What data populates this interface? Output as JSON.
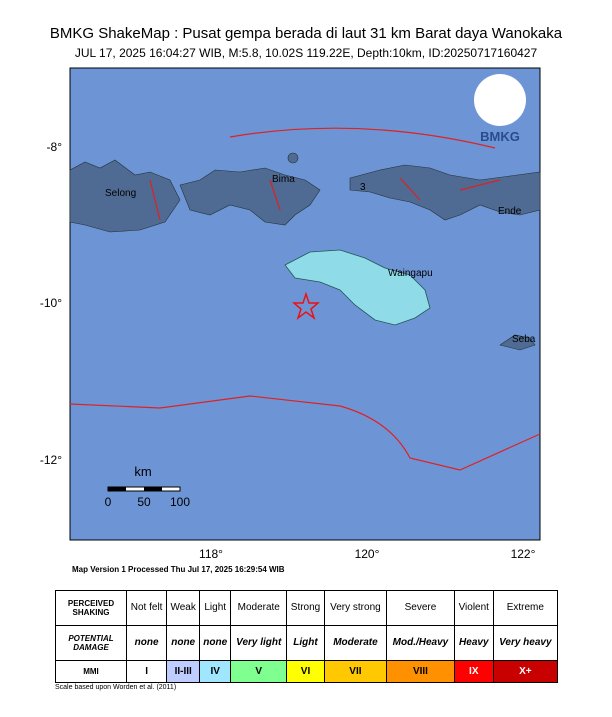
{
  "header": {
    "title": "BMKG ShakeMap : Pusat gempa berada di laut 31 km Barat daya Wanokaka",
    "subtitle": "JUL 17, 2025 16:04:27 WIB, M:5.8, 10.02S 119.22E, Depth:10km, ID:20250717160427"
  },
  "map": {
    "logo": "BMKG",
    "yticks": [
      "-8°",
      "-10°",
      "-12°"
    ],
    "xticks": [
      "118°",
      "120°",
      "122°"
    ],
    "places": [
      "Selong",
      "Bima",
      "3",
      "Ende",
      "Waingapu",
      "Seba"
    ],
    "scale": {
      "unit": "km",
      "labels": [
        "0",
        "50",
        "100"
      ]
    }
  },
  "footer": {
    "version": "Map Version 1 Processed Thu Jul 17, 2025 16:29:54 WIB",
    "note": "Scale based upon Worden et al. (2011)"
  },
  "legend": {
    "rows": [
      {
        "label": "PERCEIVED SHAKING",
        "cells": [
          "Not felt",
          "Weak",
          "Light",
          "Moderate",
          "Strong",
          "Very strong",
          "Severe",
          "Violent",
          "Extreme"
        ]
      },
      {
        "label": "POTENTIAL DAMAGE",
        "cells": [
          "none",
          "none",
          "none",
          "Very light",
          "Light",
          "Moderate",
          "Mod./Heavy",
          "Heavy",
          "Very heavy"
        ]
      },
      {
        "label": "MMI",
        "cells": [
          "I",
          "II-III",
          "IV",
          "V",
          "VI",
          "VII",
          "VIII",
          "IX",
          "X+"
        ]
      }
    ]
  }
}
